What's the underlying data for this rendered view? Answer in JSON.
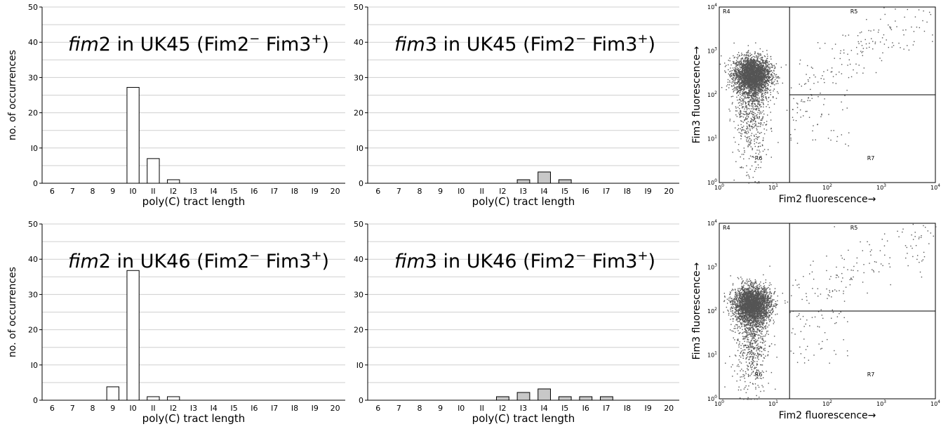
{
  "chart_data": [
    {
      "type": "bar",
      "title_gene": "fim",
      "title_num": "2",
      "title_rest": " in UK45 (Fim2",
      "title_sup1": "−",
      "title_mid": " Fim3",
      "title_sup2": "+",
      "title_end": ")",
      "categories": [
        "6",
        "7",
        "8",
        "9",
        "I0",
        "II",
        "I2",
        "I3",
        "I4",
        "I5",
        "I6",
        "I7",
        "I8",
        "I9",
        "20"
      ],
      "values": [
        0,
        0,
        0,
        0,
        27.2,
        7,
        1,
        0,
        0,
        0,
        0,
        0,
        0,
        0,
        0
      ],
      "bar_color": "#ffffff",
      "xlabel": "poly(C) tract length",
      "ylabel": "no. of occurrences",
      "ylim": [
        0,
        50
      ],
      "yticks": [
        "0",
        "I0",
        "20",
        "30",
        "40",
        "50"
      ],
      "grid": true
    },
    {
      "type": "bar",
      "title_gene": "fim",
      "title_num": "3",
      "title_rest": " in UK45 (Fim2",
      "title_sup1": "−",
      "title_mid": " Fim3",
      "title_sup2": "+",
      "title_end": ")",
      "categories": [
        "6",
        "7",
        "8",
        "9",
        "I0",
        "II",
        "I2",
        "I3",
        "I4",
        "I5",
        "I6",
        "I7",
        "I8",
        "I9",
        "20"
      ],
      "values": [
        0,
        0,
        0,
        0,
        0,
        0,
        0,
        1,
        3.2,
        1,
        0,
        0,
        0,
        0,
        0
      ],
      "bar_color": "#c8c8c8",
      "xlabel": "poly(C) tract length",
      "ylabel": "",
      "ylim": [
        0,
        50
      ],
      "yticks": [
        "0",
        "I0",
        "20",
        "30",
        "40",
        "50"
      ],
      "grid": true
    },
    {
      "type": "bar",
      "title_gene": "fim",
      "title_num": "2",
      "title_rest": " in UK46 (Fim2",
      "title_sup1": "−",
      "title_mid": " Fim3",
      "title_sup2": "+",
      "title_end": ")",
      "categories": [
        "6",
        "7",
        "8",
        "9",
        "I0",
        "II",
        "I2",
        "I3",
        "I4",
        "I5",
        "I6",
        "I7",
        "I8",
        "I9",
        "20"
      ],
      "values": [
        0,
        0,
        0,
        3.8,
        36.8,
        1,
        1,
        0,
        0,
        0,
        0,
        0,
        0,
        0,
        0
      ],
      "bar_color": "#ffffff",
      "xlabel": "poly(C) tract length",
      "ylabel": "no. of occurrences",
      "ylim": [
        0,
        50
      ],
      "yticks": [
        "0",
        "I0",
        "20",
        "30",
        "40",
        "50"
      ],
      "grid": true
    },
    {
      "type": "bar",
      "title_gene": "fim",
      "title_num": "3",
      "title_rest": " in UK46 (Fim2",
      "title_sup1": "−",
      "title_mid": " Fim3",
      "title_sup2": "+",
      "title_end": ")",
      "categories": [
        "6",
        "7",
        "8",
        "9",
        "I0",
        "II",
        "I2",
        "I3",
        "I4",
        "I5",
        "I6",
        "I7",
        "I8",
        "I9",
        "20"
      ],
      "values": [
        0,
        0,
        0,
        0,
        0,
        0,
        1,
        2.2,
        3.2,
        1,
        1,
        1,
        0,
        0,
        0
      ],
      "bar_color": "#c8c8c8",
      "xlabel": "poly(C) tract length",
      "ylabel": "",
      "ylim": [
        0,
        50
      ],
      "yticks": [
        "0",
        "I0",
        "20",
        "30",
        "40",
        "50"
      ],
      "grid": true
    },
    {
      "type": "scatter",
      "scale": "log",
      "xlim": [
        1,
        10000
      ],
      "ylim": [
        1,
        10000
      ],
      "xticks": [
        {
          "base": "10",
          "exp": "0"
        },
        {
          "base": "10",
          "exp": "1"
        },
        {
          "base": "10",
          "exp": "2"
        },
        {
          "base": "10",
          "exp": "3"
        },
        {
          "base": "10",
          "exp": "4"
        }
      ],
      "yticks": [
        {
          "base": "10",
          "exp": "0"
        },
        {
          "base": "10",
          "exp": "1"
        },
        {
          "base": "10",
          "exp": "2"
        },
        {
          "base": "10",
          "exp": "3"
        },
        {
          "base": "10",
          "exp": "4"
        }
      ],
      "xlabel": "Fim2  fluorescence→",
      "ylabel": "Fim3 fluorescence→",
      "gate_x": 20,
      "gate_y": 100,
      "region_labels": [
        "R4",
        "R5",
        "R6",
        "R7"
      ],
      "cluster": {
        "x": 4,
        "y": 300
      },
      "point_color": "#555555"
    },
    {
      "type": "scatter",
      "scale": "log",
      "xlim": [
        1,
        10000
      ],
      "ylim": [
        1,
        10000
      ],
      "xticks": [
        {
          "base": "10",
          "exp": "0"
        },
        {
          "base": "10",
          "exp": "1"
        },
        {
          "base": "10",
          "exp": "2"
        },
        {
          "base": "10",
          "exp": "3"
        },
        {
          "base": "10",
          "exp": "4"
        }
      ],
      "yticks": [
        {
          "base": "10",
          "exp": "0"
        },
        {
          "base": "10",
          "exp": "1"
        },
        {
          "base": "10",
          "exp": "2"
        },
        {
          "base": "10",
          "exp": "3"
        },
        {
          "base": "10",
          "exp": "4"
        }
      ],
      "xlabel": "Fim2  fluorescence→",
      "ylabel": "Fim3 fluorescence→",
      "gate_x": 20,
      "gate_y": 100,
      "region_labels": [
        "R4",
        "R5",
        "R6",
        "R7"
      ],
      "cluster": {
        "x": 4,
        "y": 150
      },
      "point_color": "#555555"
    }
  ]
}
